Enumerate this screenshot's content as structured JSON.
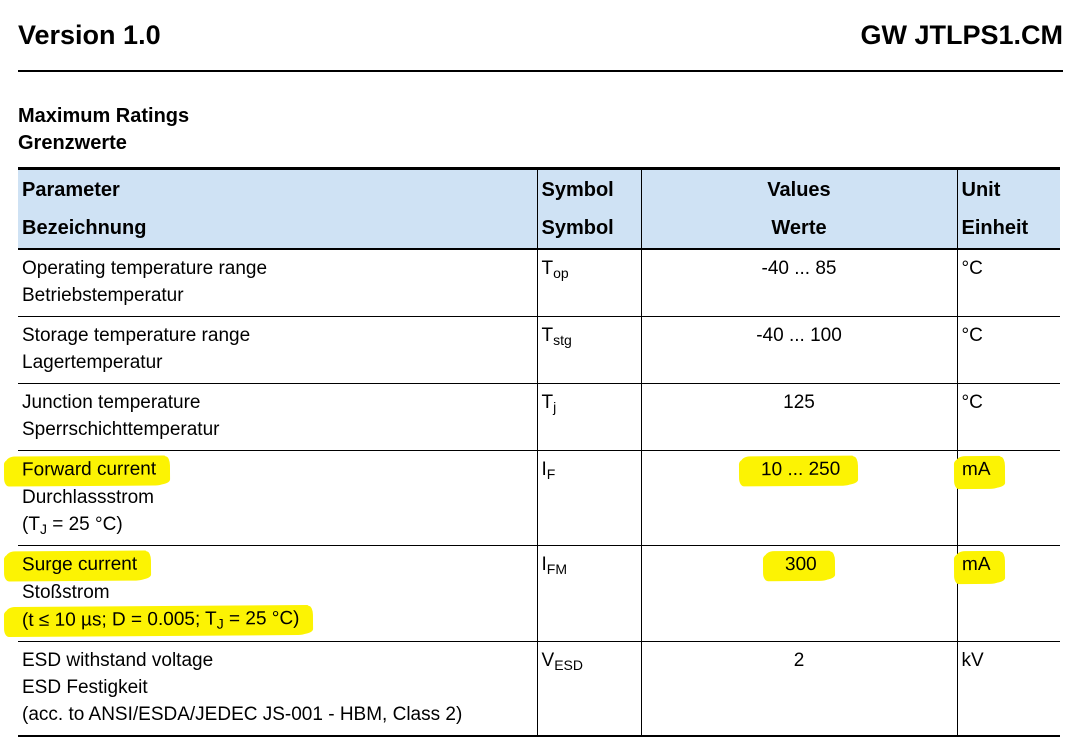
{
  "page_header": {
    "version": "Version 1.0",
    "product": "GW JTLPS1.CM"
  },
  "section": {
    "title_en": "Maximum Ratings",
    "title_de": "Grenzwerte"
  },
  "colors": {
    "table_header_bg": "#cfe2f4",
    "highlight_yellow": "#fcf303",
    "text": "#000000",
    "border": "#000000"
  },
  "table": {
    "headers": {
      "param_en": "Parameter",
      "param_de": "Bezeichnung",
      "symbol_en": "Symbol",
      "symbol_de": "Symbol",
      "values_en": "Values",
      "values_de": "Werte",
      "unit_en": "Unit",
      "unit_de": "Einheit"
    },
    "rows": [
      {
        "param_lines": [
          {
            "segments": [
              {
                "text": "Operating temperature range"
              }
            ]
          },
          {
            "segments": [
              {
                "text": "Betriebstemperatur"
              }
            ]
          }
        ],
        "symbol": {
          "main": "T",
          "sub": "op"
        },
        "value": {
          "text": "-40 ... 85",
          "highlight": false
        },
        "unit": {
          "text": "°C",
          "highlight": false
        }
      },
      {
        "param_lines": [
          {
            "segments": [
              {
                "text": "Storage temperature range"
              }
            ]
          },
          {
            "segments": [
              {
                "text": "Lagertemperatur"
              }
            ]
          }
        ],
        "symbol": {
          "main": "T",
          "sub": "stg"
        },
        "value": {
          "text": "-40 ... 100",
          "highlight": false
        },
        "unit": {
          "text": "°C",
          "highlight": false
        }
      },
      {
        "param_lines": [
          {
            "segments": [
              {
                "text": "Junction temperature"
              }
            ]
          },
          {
            "segments": [
              {
                "text": "Sperrschichttemperatur"
              }
            ]
          }
        ],
        "symbol": {
          "main": "T",
          "sub": "j"
        },
        "value": {
          "text": "125",
          "highlight": false
        },
        "unit": {
          "text": "°C",
          "highlight": false
        }
      },
      {
        "param_lines": [
          {
            "segments": [
              {
                "text": "Forward current"
              }
            ],
            "highlight": true
          },
          {
            "segments": [
              {
                "text": "Durchlassstrom"
              }
            ]
          },
          {
            "segments": [
              {
                "text": "(T"
              },
              {
                "text": "J",
                "sub": true
              },
              {
                "text": " = 25 °C)"
              }
            ]
          }
        ],
        "symbol": {
          "main": "I",
          "sub": "F"
        },
        "value": {
          "text": "10 ... 250",
          "highlight": true
        },
        "unit": {
          "text": "mA",
          "highlight": true
        }
      },
      {
        "param_lines": [
          {
            "segments": [
              {
                "text": "Surge current"
              }
            ],
            "highlight": true
          },
          {
            "segments": [
              {
                "text": "Stoßstrom"
              }
            ]
          },
          {
            "segments": [
              {
                "text": "(t ≤ 10 µs; D = 0.005; T"
              },
              {
                "text": "J",
                "sub": true
              },
              {
                "text": " = 25 °C)"
              }
            ],
            "highlight": true
          }
        ],
        "symbol": {
          "main": "I",
          "sub": "FM"
        },
        "value": {
          "text": "300",
          "highlight": true
        },
        "unit": {
          "text": "mA",
          "highlight": true
        }
      },
      {
        "param_lines": [
          {
            "segments": [
              {
                "text": "ESD withstand voltage"
              }
            ]
          },
          {
            "segments": [
              {
                "text": "ESD Festigkeit"
              }
            ]
          },
          {
            "segments": [
              {
                "text": "(acc. to ANSI/ESDA/JEDEC JS-001 - HBM, Class 2)"
              }
            ]
          }
        ],
        "symbol": {
          "main": "V",
          "sub": "ESD"
        },
        "value": {
          "text": "2",
          "highlight": false
        },
        "unit": {
          "text": "kV",
          "highlight": false
        }
      }
    ]
  }
}
